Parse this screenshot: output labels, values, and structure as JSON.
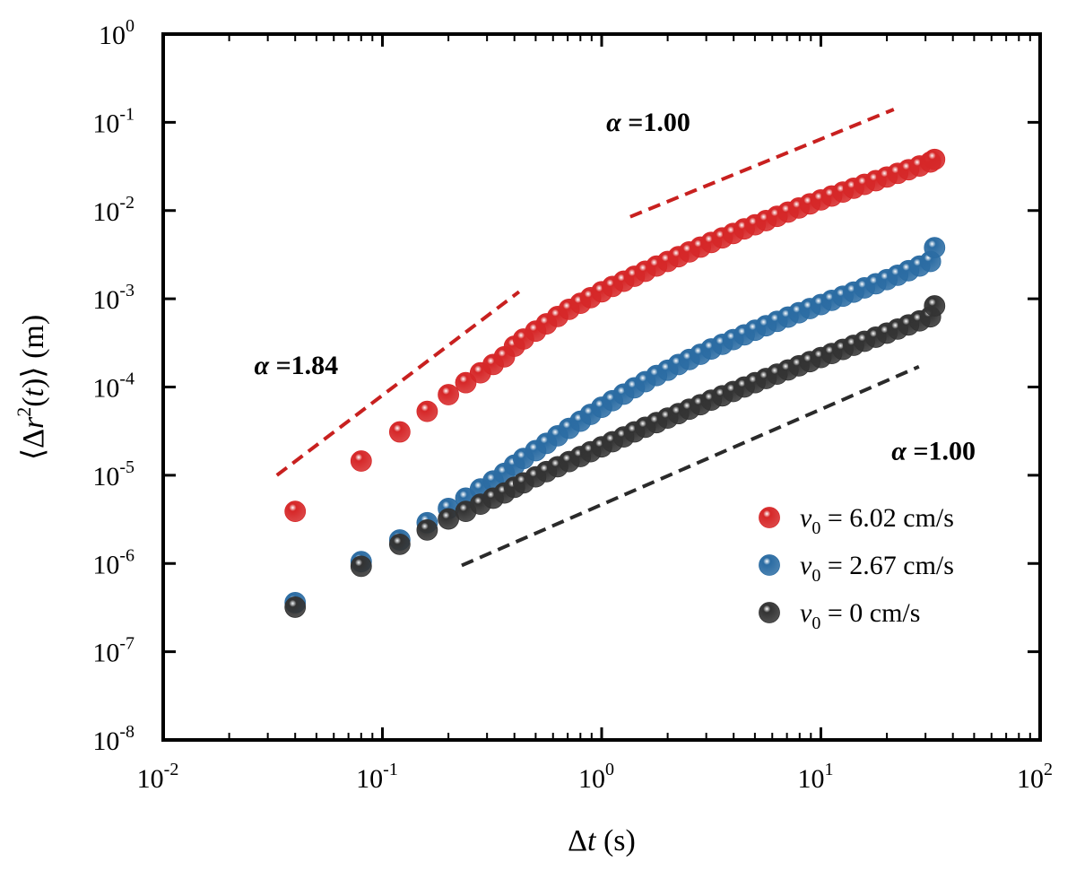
{
  "chart_data": {
    "type": "scatter",
    "xscale": "log",
    "yscale": "log",
    "xlim": [
      0.01,
      100
    ],
    "ylim": [
      1e-08,
      1
    ],
    "xticks": [
      {
        "base": "10",
        "exp": "-2"
      },
      {
        "base": "10",
        "exp": "-1"
      },
      {
        "base": "10",
        "exp": "0"
      },
      {
        "base": "10",
        "exp": "1"
      },
      {
        "base": "10",
        "exp": "2"
      }
    ],
    "yticks": [
      {
        "base": "10",
        "exp": "0"
      },
      {
        "base": "10",
        "exp": "-1"
      },
      {
        "base": "10",
        "exp": "-2"
      },
      {
        "base": "10",
        "exp": "-3"
      },
      {
        "base": "10",
        "exp": "-4"
      },
      {
        "base": "10",
        "exp": "-5"
      },
      {
        "base": "10",
        "exp": "-6"
      },
      {
        "base": "10",
        "exp": "-7"
      },
      {
        "base": "10",
        "exp": "-8"
      }
    ],
    "xlabel": {
      "symbol": "Δ",
      "var": "t",
      "unit": " (s)"
    },
    "ylabel": {
      "open": "⟨Δ",
      "var": "r",
      "sup": "2",
      "paren_open": "(",
      "var2": "t",
      "paren_close": ")⟩",
      "unit": " (m)"
    },
    "grid": false,
    "legend_position": "bottom-right",
    "series": [
      {
        "name": "v0 = 6.02 cm/s",
        "legend": {
          "var": "v",
          "sub": "0",
          "rest": " = 6.02 cm/s"
        },
        "color": "#d62728",
        "x": [
          0.04,
          0.08,
          0.12,
          0.16,
          0.2,
          0.24,
          0.28,
          0.32,
          0.36,
          0.4,
          0.44,
          0.5,
          0.56,
          0.63,
          0.71,
          0.8,
          0.89,
          1.0,
          1.12,
          1.26,
          1.41,
          1.58,
          1.78,
          2.0,
          2.24,
          2.51,
          2.82,
          3.16,
          3.55,
          3.98,
          4.47,
          5.01,
          5.62,
          6.31,
          7.08,
          7.94,
          8.91,
          10.0,
          11.2,
          12.6,
          14.1,
          15.8,
          17.8,
          20.0,
          22.4,
          25.1,
          28.2,
          31.6,
          33.0
        ],
        "y": [
          3.9e-06,
          1.45e-05,
          3.1e-05,
          5.3e-05,
          8.2e-05,
          0.000112,
          0.000145,
          0.00018,
          0.00022,
          0.00029,
          0.00035,
          0.00043,
          0.00052,
          0.00063,
          0.00076,
          0.00089,
          0.00103,
          0.0012,
          0.00138,
          0.00158,
          0.0018,
          0.00205,
          0.00235,
          0.00265,
          0.003,
          0.0034,
          0.00385,
          0.00435,
          0.0049,
          0.0055,
          0.0062,
          0.0069,
          0.0077,
          0.0086,
          0.0096,
          0.0107,
          0.0119,
          0.0132,
          0.0146,
          0.0162,
          0.0179,
          0.0198,
          0.0218,
          0.024,
          0.0264,
          0.029,
          0.032,
          0.0355,
          0.038
        ]
      },
      {
        "name": "v0 = 2.67 cm/s",
        "legend": {
          "var": "v",
          "sub": "0",
          "rest": " = 2.67 cm/s"
        },
        "color": "#2b6ca3",
        "x": [
          0.04,
          0.08,
          0.12,
          0.16,
          0.2,
          0.24,
          0.28,
          0.32,
          0.36,
          0.4,
          0.44,
          0.5,
          0.56,
          0.63,
          0.71,
          0.8,
          0.89,
          1.0,
          1.12,
          1.26,
          1.41,
          1.58,
          1.78,
          2.0,
          2.24,
          2.51,
          2.82,
          3.16,
          3.55,
          3.98,
          4.47,
          5.01,
          5.62,
          6.31,
          7.08,
          7.94,
          8.91,
          10.0,
          11.2,
          12.6,
          14.1,
          15.8,
          17.8,
          20.0,
          22.4,
          25.1,
          28.2,
          31.6,
          33.0
        ],
        "y": [
          3.6e-07,
          1.05e-06,
          1.85e-06,
          2.9e-06,
          4.2e-06,
          5.5e-06,
          7e-06,
          8.6e-06,
          1.05e-05,
          1.3e-05,
          1.55e-05,
          1.9e-05,
          2.3e-05,
          2.8e-05,
          3.4e-05,
          4.1e-05,
          4.9e-05,
          5.9e-05,
          7e-05,
          8.3e-05,
          9.8e-05,
          0.000115,
          0.000135,
          0.000155,
          0.00018,
          0.000205,
          0.000235,
          0.00027,
          0.000305,
          0.000345,
          0.00039,
          0.00044,
          0.000495,
          0.000555,
          0.00062,
          0.000695,
          0.000775,
          0.00086,
          0.00096,
          0.00107,
          0.00119,
          0.00133,
          0.00148,
          0.00165,
          0.00185,
          0.00208,
          0.00235,
          0.00265,
          0.0038
        ]
      },
      {
        "name": "v0 = 0 cm/s",
        "legend": {
          "var": "v",
          "sub": "0",
          "rest": " = 0 cm/s"
        },
        "color": "#333333",
        "x": [
          0.04,
          0.08,
          0.12,
          0.16,
          0.2,
          0.24,
          0.28,
          0.32,
          0.36,
          0.4,
          0.44,
          0.5,
          0.56,
          0.63,
          0.71,
          0.8,
          0.89,
          1.0,
          1.12,
          1.26,
          1.41,
          1.58,
          1.78,
          2.0,
          2.24,
          2.51,
          2.82,
          3.16,
          3.55,
          3.98,
          4.47,
          5.01,
          5.62,
          6.31,
          7.08,
          7.94,
          8.91,
          10.0,
          11.2,
          12.6,
          14.1,
          15.8,
          17.8,
          20.0,
          22.4,
          25.1,
          28.2,
          31.6,
          33.0
        ],
        "y": [
          3.2e-07,
          9.3e-07,
          1.65e-06,
          2.4e-06,
          3.2e-06,
          3.9e-06,
          4.7e-06,
          5.5e-06,
          6.3e-06,
          7.3e-06,
          8.2e-06,
          9.6e-06,
          1.1e-05,
          1.25e-05,
          1.43e-05,
          1.63e-05,
          1.85e-05,
          2.1e-05,
          2.4e-05,
          2.72e-05,
          3.1e-05,
          3.5e-05,
          3.95e-05,
          4.45e-05,
          5e-05,
          5.6e-05,
          6.3e-05,
          7.1e-05,
          7.95e-05,
          8.9e-05,
          0.0001,
          0.000112,
          0.000125,
          0.00014,
          0.000156,
          0.000174,
          0.000194,
          0.000216,
          0.00024,
          0.000267,
          0.000297,
          0.00033,
          0.000367,
          0.000408,
          0.000454,
          0.000505,
          0.000562,
          0.000625,
          0.00083
        ]
      }
    ],
    "reference_lines": [
      {
        "label": "α =1.84",
        "color": "#c8201f",
        "x": [
          0.033,
          0.42
        ],
        "y": [
          1e-05,
          0.0012
        ]
      },
      {
        "label": "α =1.00",
        "color": "#c8201f",
        "x": [
          1.35,
          21.5
        ],
        "y": [
          0.0085,
          0.14
        ]
      },
      {
        "label": "α =1.00",
        "color": "#2a2a2a",
        "x": [
          0.23,
          28.0
        ],
        "y": [
          9.5e-07,
          0.00017
        ]
      }
    ]
  }
}
